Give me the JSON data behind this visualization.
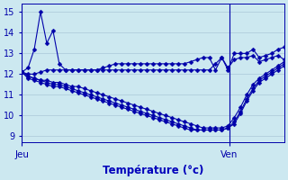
{
  "bg_color": "#cce8f0",
  "grid_color": "#aac8d8",
  "line_color": "#0000aa",
  "xlabel": "Température (°c)",
  "xlabel_color": "#0000bb",
  "tick_labels_color": "#0000aa",
  "ylim": [
    8.7,
    15.4
  ],
  "xlim": [
    0,
    48
  ],
  "yticks": [
    9,
    10,
    11,
    12,
    13,
    14,
    15
  ],
  "jeu_x": 0,
  "ven_x": 38,
  "series": [
    [
      12.1,
      12.3,
      13.2,
      15.0,
      13.5,
      14.1,
      12.5,
      12.2,
      12.2,
      12.2,
      12.2,
      12.2,
      12.2,
      12.3,
      12.4,
      12.5,
      12.5,
      12.5,
      12.5,
      12.5,
      12.5,
      12.5,
      12.5,
      12.5,
      12.5,
      12.5,
      12.5,
      12.6,
      12.7,
      12.8,
      12.8,
      12.2,
      12.8,
      12.2,
      13.0,
      13.0,
      13.0,
      13.2,
      12.8,
      12.9,
      13.0,
      13.2,
      13.3
    ],
    [
      12.1,
      12.0,
      12.0,
      12.1,
      12.2,
      12.2,
      12.2,
      12.2,
      12.2,
      12.2,
      12.2,
      12.2,
      12.2,
      12.2,
      12.2,
      12.2,
      12.2,
      12.2,
      12.2,
      12.2,
      12.2,
      12.2,
      12.2,
      12.2,
      12.2,
      12.2,
      12.2,
      12.2,
      12.2,
      12.2,
      12.2,
      12.5,
      12.8,
      12.3,
      12.7,
      12.8,
      12.8,
      12.9,
      12.6,
      12.7,
      12.8,
      12.9,
      12.7
    ],
    [
      12.1,
      11.9,
      11.8,
      11.7,
      11.7,
      11.6,
      11.6,
      11.5,
      11.4,
      11.4,
      11.3,
      11.2,
      11.1,
      11.0,
      10.9,
      10.8,
      10.7,
      10.6,
      10.5,
      10.4,
      10.3,
      10.2,
      10.1,
      10.0,
      9.9,
      9.8,
      9.7,
      9.6,
      9.5,
      9.4,
      9.4,
      9.4,
      9.4,
      9.5,
      9.9,
      10.4,
      11.0,
      11.5,
      11.8,
      12.0,
      12.2,
      12.4,
      12.6
    ],
    [
      12.1,
      11.9,
      11.8,
      11.7,
      11.6,
      11.5,
      11.5,
      11.4,
      11.3,
      11.2,
      11.1,
      11.0,
      10.9,
      10.8,
      10.7,
      10.6,
      10.5,
      10.4,
      10.3,
      10.2,
      10.1,
      10.0,
      9.9,
      9.8,
      9.7,
      9.6,
      9.5,
      9.4,
      9.3,
      9.3,
      9.3,
      9.3,
      9.3,
      9.4,
      9.7,
      10.2,
      10.8,
      11.3,
      11.7,
      11.9,
      12.1,
      12.3,
      12.5
    ],
    [
      12.1,
      11.8,
      11.7,
      11.6,
      11.5,
      11.4,
      11.4,
      11.3,
      11.2,
      11.1,
      11.0,
      10.9,
      10.8,
      10.7,
      10.6,
      10.5,
      10.4,
      10.3,
      10.2,
      10.1,
      10.0,
      9.9,
      9.8,
      9.7,
      9.6,
      9.5,
      9.4,
      9.3,
      9.3,
      9.3,
      9.3,
      9.3,
      9.3,
      9.4,
      9.6,
      10.1,
      10.7,
      11.2,
      11.6,
      11.8,
      12.0,
      12.2,
      12.4
    ]
  ]
}
